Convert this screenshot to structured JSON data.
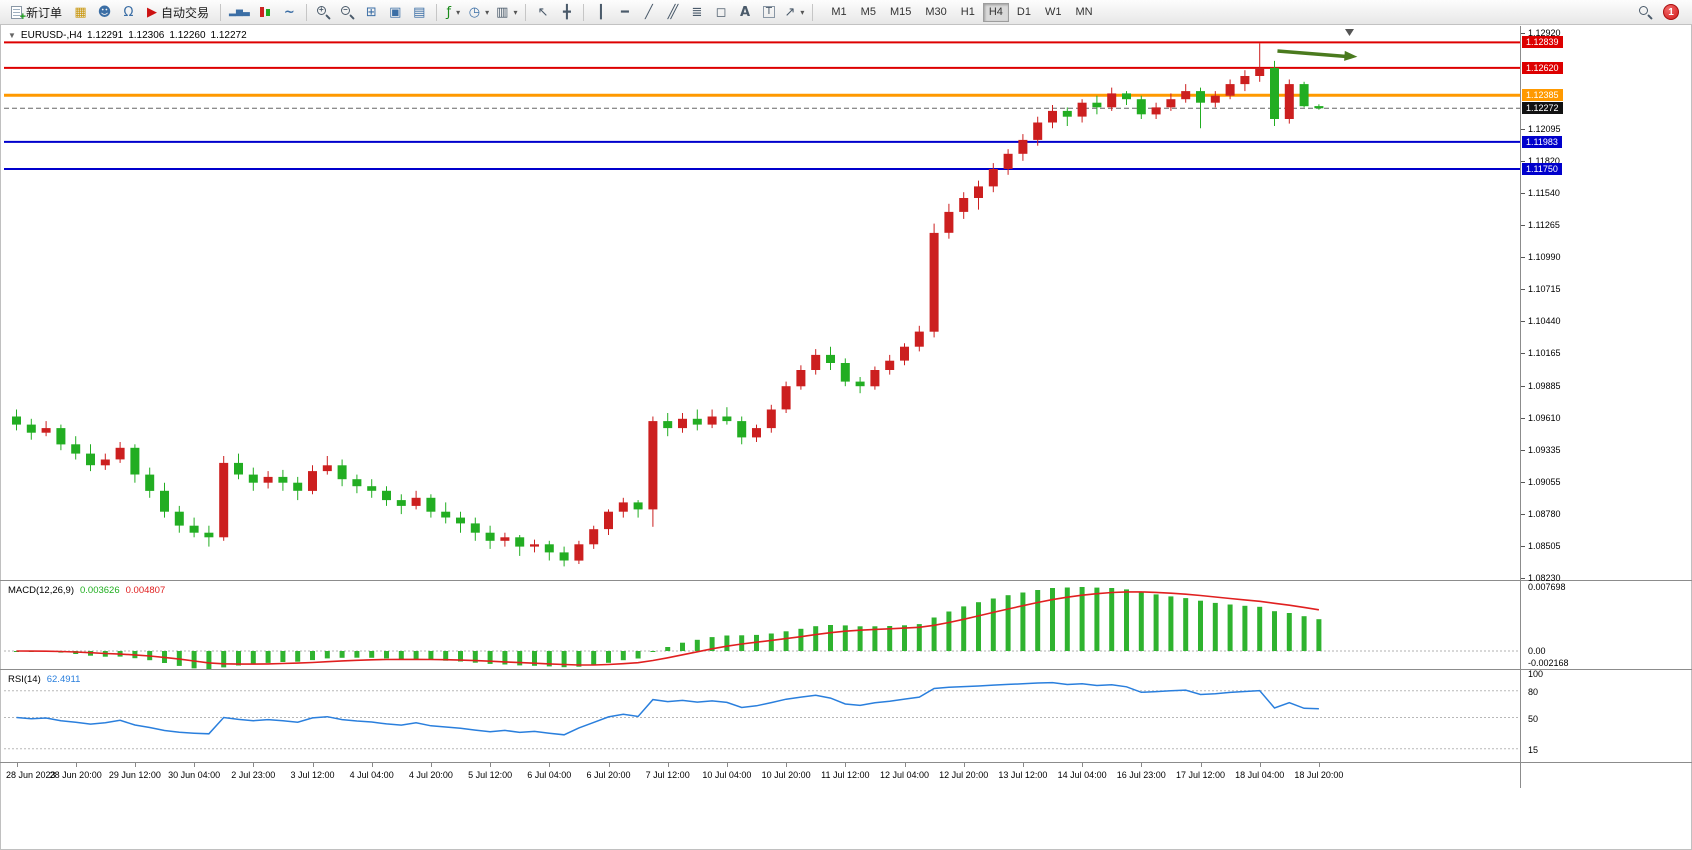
{
  "toolbar": {
    "new_order": "新订单",
    "autotrade": "自动交易",
    "timeframes": [
      "M1",
      "M5",
      "M15",
      "M30",
      "H1",
      "H4",
      "D1",
      "W1",
      "MN"
    ],
    "active_timeframe": "H4",
    "notification_count": "1"
  },
  "header": {
    "symbol_period": "EURUSD-,H4",
    "open": "1.12291",
    "high": "1.12306",
    "low": "1.12260",
    "close": "1.12272"
  },
  "price_axis": {
    "ticks": [
      "1.12920",
      "1.12095",
      "1.11820",
      "1.11540",
      "1.11265",
      "1.10990",
      "1.10715",
      "1.10440",
      "1.10165",
      "1.09885",
      "1.09610",
      "1.09335",
      "1.09055",
      "1.08780",
      "1.08505",
      "1.08230"
    ],
    "line_labels": [
      {
        "text": "1.12839",
        "price": 1.12839,
        "bg": "#dd0000",
        "fg": "#ffffff"
      },
      {
        "text": "1.12620",
        "price": 1.1262,
        "bg": "#dd0000",
        "fg": "#ffffff"
      },
      {
        "text": "1.12385",
        "price": 1.12385,
        "bg": "#ff9900",
        "fg": "#ffffff"
      },
      {
        "text": "1.12272",
        "price": 1.12272,
        "bg": "#111111",
        "fg": "#ffffff"
      },
      {
        "text": "1.11983",
        "price": 1.11983,
        "bg": "#0000cc",
        "fg": "#ffffff"
      },
      {
        "text": "1.11750",
        "price": 1.1175,
        "bg": "#0000cc",
        "fg": "#ffffff"
      }
    ]
  },
  "macd_panel": {
    "name": "MACD(12,26,9)",
    "value_main": "0.003626",
    "value_signal": "0.004807",
    "axis_max": "0.007698",
    "axis_zero": "0.00",
    "axis_min": "-0.002168"
  },
  "rsi_panel": {
    "name": "RSI(14)",
    "value": "62.4911",
    "axis": [
      "100",
      "80",
      "50",
      "15"
    ]
  },
  "chart_data": {
    "type": "candlestick",
    "symbol": "EURUSD-",
    "timeframe": "H4",
    "ylim": [
      1.0823,
      1.1292
    ],
    "up_color": "#cc1f1f",
    "down_color": "#22ad22",
    "x_labels": [
      "28 Jun 2023",
      "28 Jun 20:00",
      "29 Jun 12:00",
      "30 Jun 04:00",
      "2 Jul 23:00",
      "3 Jul 12:00",
      "4 Jul 04:00",
      "4 Jul 20:00",
      "5 Jul 12:00",
      "6 Jul 04:00",
      "6 Jul 20:00",
      "7 Jul 12:00",
      "10 Jul 04:00",
      "10 Jul 20:00",
      "11 Jul 12:00",
      "12 Jul 04:00",
      "12 Jul 20:00",
      "13 Jul 12:00",
      "14 Jul 04:00",
      "16 Jul 23:00",
      "17 Jul 12:00",
      "18 Jul 04:00",
      "18 Jul 20:00"
    ],
    "candles": [
      [
        1.0962,
        1.0968,
        1.095,
        1.0955
      ],
      [
        1.0955,
        1.096,
        1.0942,
        1.0948
      ],
      [
        1.0948,
        1.0958,
        1.0945,
        1.0952
      ],
      [
        1.0952,
        1.0955,
        1.0933,
        1.0938
      ],
      [
        1.0938,
        1.0945,
        1.0925,
        1.093
      ],
      [
        1.093,
        1.0938,
        1.0915,
        1.092
      ],
      [
        1.092,
        1.093,
        1.0916,
        1.0925
      ],
      [
        1.0925,
        1.094,
        1.0922,
        1.0935
      ],
      [
        1.0935,
        1.0938,
        1.0905,
        1.0912
      ],
      [
        1.0912,
        1.0918,
        1.0892,
        1.0898
      ],
      [
        1.0898,
        1.0905,
        1.0875,
        1.088
      ],
      [
        1.088,
        1.0885,
        1.0862,
        1.0868
      ],
      [
        1.0868,
        1.0875,
        1.0858,
        1.0862
      ],
      [
        1.0862,
        1.0868,
        1.085,
        1.0858
      ],
      [
        1.0858,
        1.0928,
        1.0855,
        1.0922
      ],
      [
        1.0922,
        1.093,
        1.0908,
        1.0912
      ],
      [
        1.0912,
        1.0918,
        1.0898,
        1.0905
      ],
      [
        1.0905,
        1.0915,
        1.09,
        1.091
      ],
      [
        1.091,
        1.0916,
        1.0898,
        1.0905
      ],
      [
        1.0905,
        1.091,
        1.089,
        1.0898
      ],
      [
        1.0898,
        1.092,
        1.0895,
        1.0915
      ],
      [
        1.0915,
        1.0928,
        1.0912,
        1.092
      ],
      [
        1.092,
        1.0925,
        1.0902,
        1.0908
      ],
      [
        1.0908,
        1.0912,
        1.0896,
        1.0902
      ],
      [
        1.0902,
        1.0908,
        1.0892,
        1.0898
      ],
      [
        1.0898,
        1.0902,
        1.0885,
        1.089
      ],
      [
        1.089,
        1.0895,
        1.0878,
        1.0885
      ],
      [
        1.0885,
        1.0898,
        1.0882,
        1.0892
      ],
      [
        1.0892,
        1.0895,
        1.0875,
        1.088
      ],
      [
        1.088,
        1.0888,
        1.087,
        1.0875
      ],
      [
        1.0875,
        1.088,
        1.0862,
        1.087
      ],
      [
        1.087,
        1.0875,
        1.0855,
        1.0862
      ],
      [
        1.0862,
        1.0868,
        1.0848,
        1.0855
      ],
      [
        1.0855,
        1.0862,
        1.085,
        1.0858
      ],
      [
        1.0858,
        1.086,
        1.0842,
        1.085
      ],
      [
        1.085,
        1.0856,
        1.0845,
        1.0852
      ],
      [
        1.0852,
        1.0855,
        1.0838,
        1.0845
      ],
      [
        1.0845,
        1.085,
        1.0833,
        1.0838
      ],
      [
        1.0838,
        1.0855,
        1.0835,
        1.0852
      ],
      [
        1.0852,
        1.0868,
        1.0848,
        1.0865
      ],
      [
        1.0865,
        1.0882,
        1.086,
        1.088
      ],
      [
        1.088,
        1.0892,
        1.0875,
        1.0888
      ],
      [
        1.0888,
        1.089,
        1.0875,
        1.0882
      ],
      [
        1.0882,
        1.0962,
        1.0867,
        1.0958
      ],
      [
        1.0958,
        1.0965,
        1.0945,
        1.0952
      ],
      [
        1.0952,
        1.0965,
        1.0948,
        1.096
      ],
      [
        1.096,
        1.0968,
        1.095,
        1.0955
      ],
      [
        1.0955,
        1.0968,
        1.0952,
        1.0962
      ],
      [
        1.0962,
        1.097,
        1.0955,
        1.0958
      ],
      [
        1.0958,
        1.0962,
        1.0938,
        1.0944
      ],
      [
        1.0944,
        1.0955,
        1.094,
        1.0952
      ],
      [
        1.0952,
        1.0972,
        1.0948,
        1.0968
      ],
      [
        1.0968,
        1.0992,
        1.0965,
        1.0988
      ],
      [
        1.0988,
        1.1006,
        1.0985,
        1.1002
      ],
      [
        1.1002,
        1.102,
        1.0998,
        1.1015
      ],
      [
        1.1015,
        1.1022,
        1.1002,
        1.1008
      ],
      [
        1.1008,
        1.1012,
        1.0988,
        1.0992
      ],
      [
        1.0992,
        1.0996,
        1.0982,
        1.0988
      ],
      [
        1.0988,
        1.1005,
        1.0985,
        1.1002
      ],
      [
        1.1002,
        1.1015,
        1.0998,
        1.101
      ],
      [
        1.101,
        1.1025,
        1.1006,
        1.1022
      ],
      [
        1.1022,
        1.104,
        1.1018,
        1.1035
      ],
      [
        1.1035,
        1.1128,
        1.103,
        1.112
      ],
      [
        1.112,
        1.1145,
        1.1115,
        1.1138
      ],
      [
        1.1138,
        1.1155,
        1.1132,
        1.115
      ],
      [
        1.115,
        1.1165,
        1.114,
        1.116
      ],
      [
        1.116,
        1.118,
        1.1155,
        1.1175
      ],
      [
        1.1175,
        1.1192,
        1.117,
        1.1188
      ],
      [
        1.1188,
        1.1205,
        1.1182,
        1.12
      ],
      [
        1.12,
        1.122,
        1.1195,
        1.1215
      ],
      [
        1.1215,
        1.123,
        1.121,
        1.1225
      ],
      [
        1.1225,
        1.1228,
        1.1212,
        1.122
      ],
      [
        1.122,
        1.1235,
        1.1215,
        1.1232
      ],
      [
        1.1232,
        1.1238,
        1.1222,
        1.1228
      ],
      [
        1.1228,
        1.1245,
        1.1225,
        1.124
      ],
      [
        1.124,
        1.1242,
        1.123,
        1.1235
      ],
      [
        1.1235,
        1.1238,
        1.1218,
        1.1222
      ],
      [
        1.1222,
        1.1232,
        1.1218,
        1.1228
      ],
      [
        1.1228,
        1.124,
        1.1225,
        1.1235
      ],
      [
        1.1235,
        1.1248,
        1.1232,
        1.1242
      ],
      [
        1.1242,
        1.1245,
        1.121,
        1.1232
      ],
      [
        1.1232,
        1.1242,
        1.1228,
        1.1238
      ],
      [
        1.1238,
        1.1252,
        1.1235,
        1.1248
      ],
      [
        1.1248,
        1.126,
        1.1242,
        1.1255
      ],
      [
        1.1255,
        1.1283,
        1.125,
        1.1262
      ],
      [
        1.1262,
        1.1268,
        1.1212,
        1.1218
      ],
      [
        1.1218,
        1.1252,
        1.1214,
        1.1248
      ],
      [
        1.1248,
        1.125,
        1.1228,
        1.1229
      ],
      [
        1.12291,
        1.12306,
        1.1226,
        1.12272
      ]
    ],
    "hlines": [
      {
        "price": 1.12839,
        "color": "#dd0000",
        "width": 2,
        "style": "solid"
      },
      {
        "price": 1.1262,
        "color": "#dd0000",
        "width": 2,
        "style": "solid"
      },
      {
        "price": 1.12385,
        "color": "#ff9900",
        "width": 3,
        "style": "solid"
      },
      {
        "price": 1.12272,
        "color": "#666666",
        "width": 1,
        "style": "dashed",
        "role": "bid-line"
      },
      {
        "price": 1.11983,
        "color": "#0000cc",
        "width": 2,
        "style": "solid"
      },
      {
        "price": 1.1175,
        "color": "#0000cc",
        "width": 2,
        "style": "solid"
      }
    ],
    "annotations": [
      {
        "type": "arrow",
        "color": "#4a7a1e",
        "from_bar": 85.2,
        "from_price": 1.12765,
        "to_bar": 90.6,
        "to_price": 1.12715
      }
    ],
    "indicators": {
      "macd": {
        "fast": 12,
        "slow": 26,
        "signal": 9,
        "current_macd": 0.003626,
        "current_signal": 0.004807,
        "scale_max": 0.007698,
        "scale_min": -0.002168,
        "hist_color": "#2fb32f",
        "signal_color": "#e02020"
      },
      "rsi": {
        "period": 14,
        "current": 62.4911,
        "color": "#2a7fdd",
        "levels": [
          80,
          50,
          15
        ],
        "range": [
          0,
          100
        ]
      }
    }
  }
}
